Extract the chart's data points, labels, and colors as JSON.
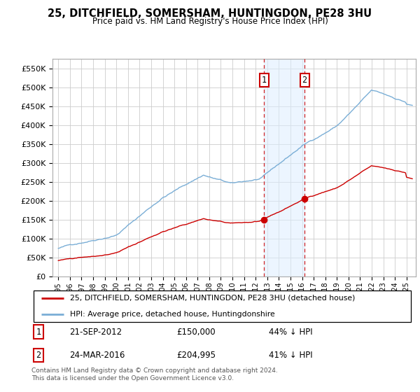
{
  "title": "25, DITCHFIELD, SOMERSHAM, HUNTINGDON, PE28 3HU",
  "subtitle": "Price paid vs. HM Land Registry's House Price Index (HPI)",
  "ytick_values": [
    0,
    50000,
    100000,
    150000,
    200000,
    250000,
    300000,
    350000,
    400000,
    450000,
    500000,
    550000
  ],
  "ylim": [
    0,
    575000
  ],
  "hpi_color": "#7aaed6",
  "price_color": "#cc0000",
  "sale1_x": 2012.72,
  "sale2_x": 2016.22,
  "sale1_value": 150000,
  "sale2_value": 204995,
  "legend_line1": "25, DITCHFIELD, SOMERSHAM, HUNTINGDON, PE28 3HU (detached house)",
  "legend_line2": "HPI: Average price, detached house, Huntingdonshire",
  "sale1_label": "1",
  "sale1_date": "21-SEP-2012",
  "sale1_price": "£150,000",
  "sale1_pct": "44% ↓ HPI",
  "sale2_label": "2",
  "sale2_date": "24-MAR-2016",
  "sale2_price": "£204,995",
  "sale2_pct": "41% ↓ HPI",
  "footer": "Contains HM Land Registry data © Crown copyright and database right 2024.\nThis data is licensed under the Open Government Licence v3.0.",
  "grid_color": "#cccccc",
  "xlim_left": 1994.5,
  "xlim_right": 2025.8,
  "xtick_years": [
    1995,
    1996,
    1997,
    1998,
    1999,
    2000,
    2001,
    2002,
    2003,
    2004,
    2005,
    2006,
    2007,
    2008,
    2009,
    2010,
    2011,
    2012,
    2013,
    2014,
    2015,
    2016,
    2017,
    2018,
    2019,
    2020,
    2021,
    2022,
    2023,
    2024,
    2025
  ]
}
